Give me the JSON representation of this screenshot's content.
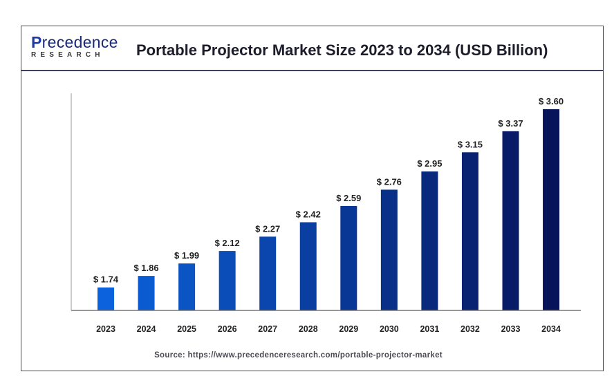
{
  "header": {
    "logo_main": "recedence",
    "logo_initial": "P",
    "logo_sub": "RESEARCH",
    "logo_alt": "Precedence Research"
  },
  "chart_data": {
    "type": "bar",
    "title": "Portable Projector Market Size 2023 to 2034 (USD Billion)",
    "categories": [
      "2023",
      "2024",
      "2025",
      "2026",
      "2027",
      "2028",
      "2029",
      "2030",
      "2031",
      "2032",
      "2033",
      "2034"
    ],
    "values": [
      1.74,
      1.86,
      1.99,
      2.12,
      2.27,
      2.42,
      2.59,
      2.76,
      2.95,
      3.15,
      3.37,
      3.6
    ],
    "data_labels": [
      "$ 1.74",
      "$ 1.86",
      "$ 1.99",
      "$ 2.12",
      "$ 2.27",
      "$ 2.42",
      "$ 2.59",
      "$ 2.76",
      "$ 2.95",
      "$ 3.15",
      "$ 3.37",
      "$ 3.60"
    ],
    "xlabel": "",
    "ylabel": "",
    "ylim": [
      1.5,
      3.65
    ],
    "grid": false,
    "legend": "none",
    "colors": {
      "start": "#0b62dc",
      "end": "#08145a"
    }
  },
  "footer": {
    "source": "Source: https://www.precedenceresearch.com/portable-projector-market"
  }
}
